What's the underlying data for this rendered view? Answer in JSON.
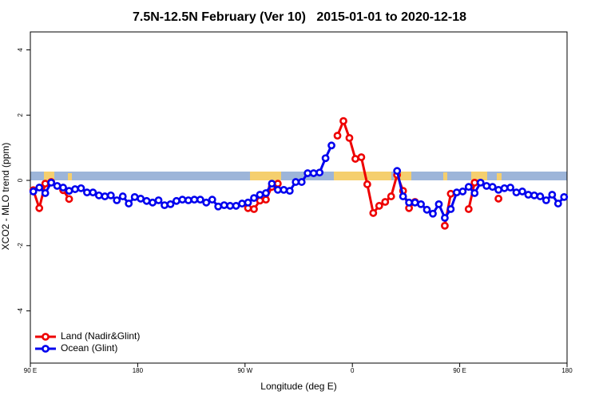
{
  "chart_data": {
    "type": "line",
    "title": "7.5N-12.5N February (Ver 10)   2015-01-01 to 2020-12-18",
    "x_label": "Longitude (deg E)",
    "y_label": "XCO2 - MLO trend (ppm)",
    "x": [
      92.5,
      97.5,
      102.5,
      107.5,
      112.5,
      117.5,
      122.5,
      127.5,
      132.5,
      137.5,
      142.5,
      147.5,
      152.5,
      157.5,
      162.5,
      167.5,
      172.5,
      177.5,
      182.5,
      187.5,
      192.5,
      197.5,
      202.5,
      207.5,
      212.5,
      217.5,
      222.5,
      227.5,
      232.5,
      237.5,
      242.5,
      247.5,
      252.5,
      257.5,
      262.5,
      267.5,
      272.5,
      277.5,
      282.5,
      287.5,
      292.5,
      297.5,
      302.5,
      307.5,
      312.5,
      317.5,
      322.5,
      327.5,
      332.5,
      337.5,
      342.5,
      347.5,
      352.5,
      357.5,
      362.5,
      367.5,
      372.5,
      377.5,
      382.5,
      387.5,
      392.5,
      397.5,
      402.5,
      407.5,
      412.5,
      417.5,
      422.5,
      427.5,
      432.5,
      437.5,
      442.5,
      447.5,
      452.5,
      457.5,
      462.5,
      467.5,
      472.5,
      477.5,
      482.5,
      487.5,
      492.5,
      497.5,
      502.5,
      507.5,
      512.5,
      517.5,
      522.5,
      527.5,
      532.5,
      537.5
    ],
    "series": [
      {
        "name": "Land (Nadir&Glint)",
        "color": "#ee0000",
        "values": [
          -0.3,
          -0.85,
          -0.1,
          -0.05,
          null,
          -0.3,
          -0.57,
          null,
          null,
          null,
          null,
          null,
          null,
          null,
          null,
          null,
          null,
          null,
          null,
          null,
          null,
          null,
          null,
          null,
          null,
          null,
          null,
          null,
          null,
          null,
          null,
          null,
          null,
          null,
          null,
          null,
          -0.85,
          -0.88,
          -0.62,
          -0.59,
          -0.2,
          -0.1,
          null,
          null,
          null,
          null,
          null,
          null,
          null,
          null,
          null,
          1.37,
          1.82,
          1.3,
          0.66,
          0.71,
          -0.12,
          -1.0,
          -0.78,
          -0.66,
          -0.49,
          0.17,
          -0.32,
          -0.85,
          -0.66,
          null,
          null,
          null,
          null,
          -1.39,
          -0.41,
          null,
          null,
          -0.88,
          -0.07,
          null,
          null,
          null,
          -0.56,
          null,
          null,
          null,
          null,
          null,
          null,
          null,
          null,
          null,
          null,
          null
        ]
      },
      {
        "name": "Ocean (Glint)",
        "color": "#0000ee",
        "values": [
          -0.34,
          -0.22,
          -0.39,
          -0.07,
          -0.17,
          -0.22,
          -0.32,
          -0.27,
          -0.24,
          -0.37,
          -0.37,
          -0.46,
          -0.49,
          -0.46,
          -0.61,
          -0.49,
          -0.71,
          -0.51,
          -0.56,
          -0.63,
          -0.68,
          -0.61,
          -0.76,
          -0.73,
          -0.63,
          -0.59,
          -0.61,
          -0.59,
          -0.59,
          -0.68,
          -0.59,
          -0.8,
          -0.76,
          -0.78,
          -0.78,
          -0.71,
          -0.68,
          -0.54,
          -0.44,
          -0.39,
          -0.1,
          -0.29,
          -0.29,
          -0.32,
          -0.05,
          -0.05,
          0.22,
          0.22,
          0.24,
          0.68,
          1.07,
          null,
          null,
          null,
          null,
          null,
          null,
          null,
          null,
          null,
          null,
          0.29,
          -0.49,
          -0.68,
          -0.68,
          -0.73,
          -0.9,
          -1.02,
          -0.73,
          -1.15,
          -0.88,
          -0.37,
          -0.34,
          -0.2,
          -0.39,
          -0.07,
          -0.17,
          -0.2,
          -0.29,
          -0.24,
          -0.22,
          -0.37,
          -0.34,
          -0.44,
          -0.46,
          -0.49,
          -0.61,
          -0.44,
          -0.71,
          -0.51
        ]
      }
    ],
    "xlim": [
      90,
      540
    ],
    "xticks": [
      {
        "value": 90,
        "label": "90 E"
      },
      180,
      {
        "value": 270,
        "label": "90 W"
      },
      {
        "value": 360,
        "label": "0"
      },
      {
        "value": 450,
        "label": "90 E"
      },
      {
        "value": 540,
        "label": "180"
      }
    ],
    "ylim": [
      -5.6,
      4.55
    ],
    "yticks": [
      -4,
      -2,
      0,
      2,
      4
    ],
    "legend": "bottom-left"
  }
}
